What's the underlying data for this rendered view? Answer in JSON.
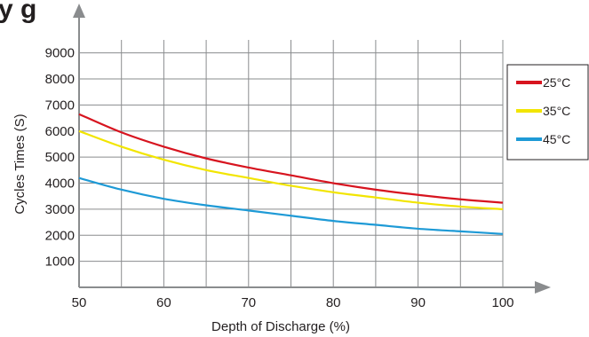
{
  "title_fragment": "y     g",
  "chart_data": {
    "type": "line",
    "xlabel": "Depth of Discharge  (%)",
    "ylabel": "Cycles Times  (S)",
    "x_ticks": [
      "50",
      "60",
      "70",
      "80",
      "90",
      "100"
    ],
    "y_ticks": [
      "1000",
      "2000",
      "3000",
      "4000",
      "5000",
      "6000",
      "7000",
      "8000",
      "9000"
    ],
    "xlim": [
      50,
      100
    ],
    "ylim": [
      0,
      9500
    ],
    "grid": true,
    "legend_position": "right",
    "series": [
      {
        "name": "25°C",
        "color": "#d7141f",
        "x": [
          50,
          55,
          60,
          65,
          70,
          75,
          80,
          85,
          90,
          95,
          100
        ],
        "values": [
          6650,
          5950,
          5400,
          4950,
          4600,
          4300,
          4000,
          3750,
          3550,
          3380,
          3250
        ]
      },
      {
        "name": "35°C",
        "color": "#f2e500",
        "x": [
          50,
          55,
          60,
          65,
          70,
          75,
          80,
          85,
          90,
          95,
          100
        ],
        "values": [
          6000,
          5400,
          4900,
          4500,
          4200,
          3900,
          3650,
          3450,
          3250,
          3100,
          3000
        ]
      },
      {
        "name": "45°C",
        "color": "#1e9ad6",
        "x": [
          50,
          55,
          60,
          65,
          70,
          75,
          80,
          85,
          90,
          95,
          100
        ],
        "values": [
          4200,
          3750,
          3400,
          3150,
          2950,
          2750,
          2550,
          2400,
          2250,
          2150,
          2050
        ]
      }
    ]
  }
}
